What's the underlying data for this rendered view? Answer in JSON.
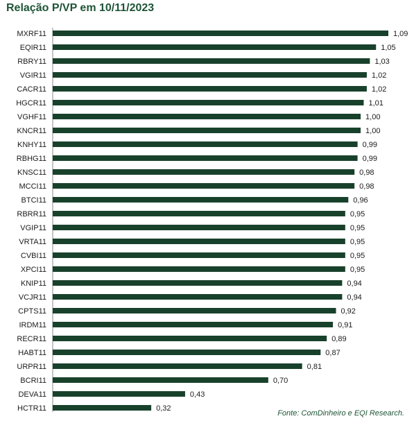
{
  "title": "Relação P/VP em 10/11/2023",
  "source": "Fonte: ComDinheiro e EQI Research.",
  "colors": {
    "bar": "#18412b",
    "title": "#1e5437"
  },
  "chart_data": {
    "type": "bar",
    "orientation": "horizontal",
    "title": "Relação P/VP em 10/11/2023",
    "categories": [
      "MXRF11",
      "EQIR11",
      "RBRY11",
      "VGIR11",
      "CACR11",
      "HGCR11",
      "VGHF11",
      "KNCR11",
      "KNHY11",
      "RBHG11",
      "KNSC11",
      "MCCI11",
      "BTCI11",
      "RBRR11",
      "VGIP11",
      "VRTA11",
      "CVBI11",
      "XPCI11",
      "KNIP11",
      "VCJR11",
      "CPTS11",
      "IRDM11",
      "RECR11",
      "HABT11",
      "URPR11",
      "BCRI11",
      "DEVA11",
      "HCTR11"
    ],
    "values": [
      1.09,
      1.05,
      1.03,
      1.02,
      1.02,
      1.01,
      1.0,
      1.0,
      0.99,
      0.99,
      0.98,
      0.98,
      0.96,
      0.95,
      0.95,
      0.95,
      0.95,
      0.95,
      0.94,
      0.94,
      0.92,
      0.91,
      0.89,
      0.87,
      0.81,
      0.7,
      0.43,
      0.32
    ],
    "value_labels": [
      "1,09",
      "1,05",
      "1,03",
      "1,02",
      "1,02",
      "1,01",
      "1,00",
      "1,00",
      "0,99",
      "0,99",
      "0,98",
      "0,98",
      "0,96",
      "0,95",
      "0,95",
      "0,95",
      "0,95",
      "0,95",
      "0,94",
      "0,94",
      "0,92",
      "0,91",
      "0,89",
      "0,87",
      "0,81",
      "0,70",
      "0,43",
      "0,32"
    ],
    "xlim": [
      0,
      1.09
    ],
    "grid": false,
    "legend": "none"
  }
}
